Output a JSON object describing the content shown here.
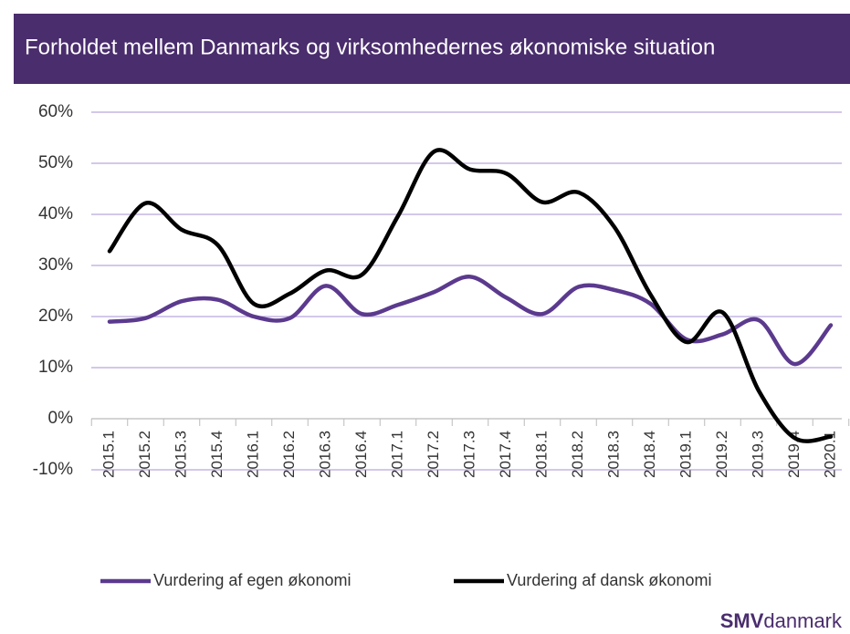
{
  "chart_data": {
    "type": "line",
    "title": "Forholdet mellem Danmarks og virksomhedernes økonomiske situation",
    "categories": [
      "2015.1",
      "2015.2",
      "2015.3",
      "2015.4",
      "2016.1",
      "2016.2",
      "2016.3",
      "2016.4",
      "2017.1",
      "2017.2",
      "2017.3",
      "2017.4",
      "2018.1",
      "2018.2",
      "2018.3",
      "2018.4",
      "2019.1",
      "2019.2",
      "2019.3",
      "2019.4",
      "2020.1"
    ],
    "series": [
      {
        "name": "Vurdering af egen økonomi",
        "color": "#5b3a8e",
        "values": [
          19,
          19.7,
          23,
          23.3,
          20,
          19.7,
          26,
          20.5,
          22.3,
          24.8,
          27.8,
          23.7,
          20.5,
          25.8,
          25.2,
          22.5,
          15.5,
          16.5,
          19.3,
          10.7,
          18.3
        ]
      },
      {
        "name": "Vurdering af dansk økonomi",
        "color": "#000000",
        "values": [
          32.8,
          42.2,
          37,
          34,
          22.5,
          24.5,
          29,
          28.2,
          39.7,
          52.3,
          48.8,
          48,
          42.4,
          44.3,
          37.5,
          24.3,
          15,
          20.8,
          5.5,
          -3.8,
          -3.5
        ]
      }
    ],
    "ylim": [
      -10,
      60
    ],
    "yticks": [
      {
        "value": -10,
        "label": "-10%"
      },
      {
        "value": 0,
        "label": "0%"
      },
      {
        "value": 10,
        "label": "10%"
      },
      {
        "value": 20,
        "label": "20%"
      },
      {
        "value": 30,
        "label": "30%"
      },
      {
        "value": 40,
        "label": "40%"
      },
      {
        "value": 50,
        "label": "50%"
      },
      {
        "value": 60,
        "label": "60%"
      }
    ],
    "grid": true,
    "legend": "bottom"
  },
  "logo": {
    "bold": "SMV",
    "rest": "danmark"
  }
}
